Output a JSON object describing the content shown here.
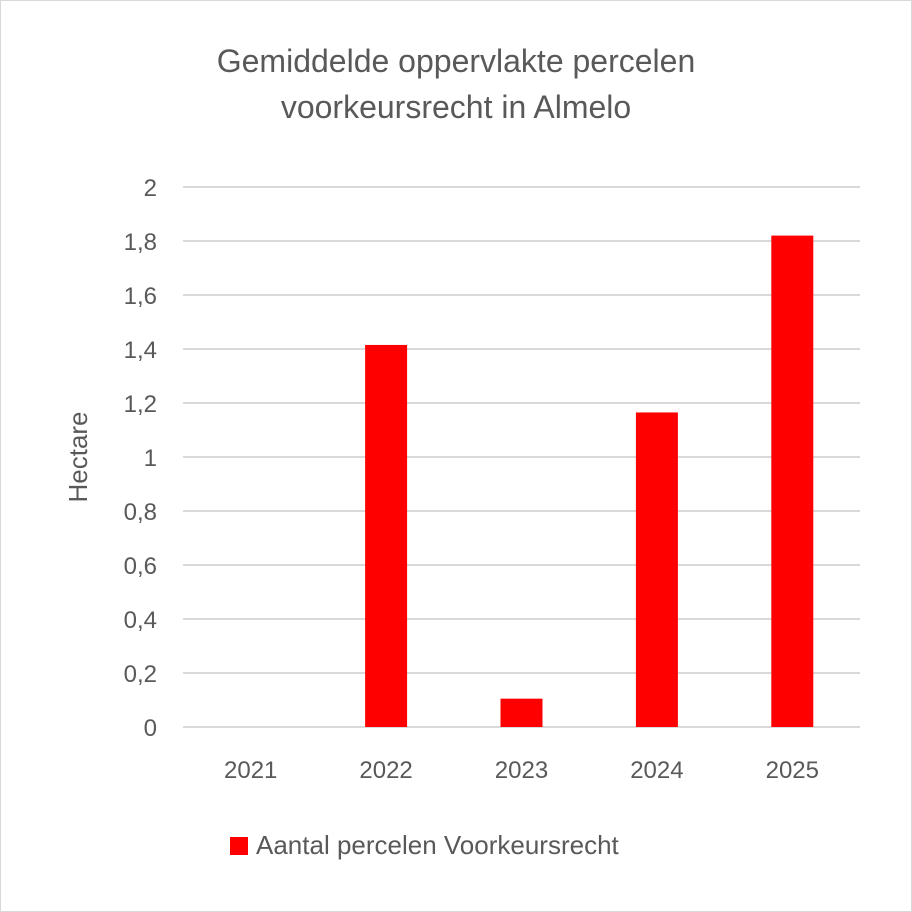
{
  "chart_data": {
    "type": "bar",
    "title_line1": "Gemiddelde oppervlakte percelen",
    "title_line2": "voorkeursrecht in Almelo",
    "categories": [
      "2021",
      "2022",
      "2023",
      "2024",
      "2025"
    ],
    "series": [
      {
        "name": "Aantal percelen Voorkeursrecht",
        "values": [
          0,
          1.415,
          0.105,
          1.165,
          1.82
        ],
        "color": "#ff0000"
      }
    ],
    "ylabel": "Hectare",
    "ylim": [
      0,
      2
    ],
    "yticks": [
      "0",
      "0,2",
      "0,4",
      "0,6",
      "0,8",
      "1",
      "1,2",
      "1,4",
      "1,6",
      "1,8",
      "2"
    ],
    "grid": true,
    "legend_position": "bottom"
  }
}
